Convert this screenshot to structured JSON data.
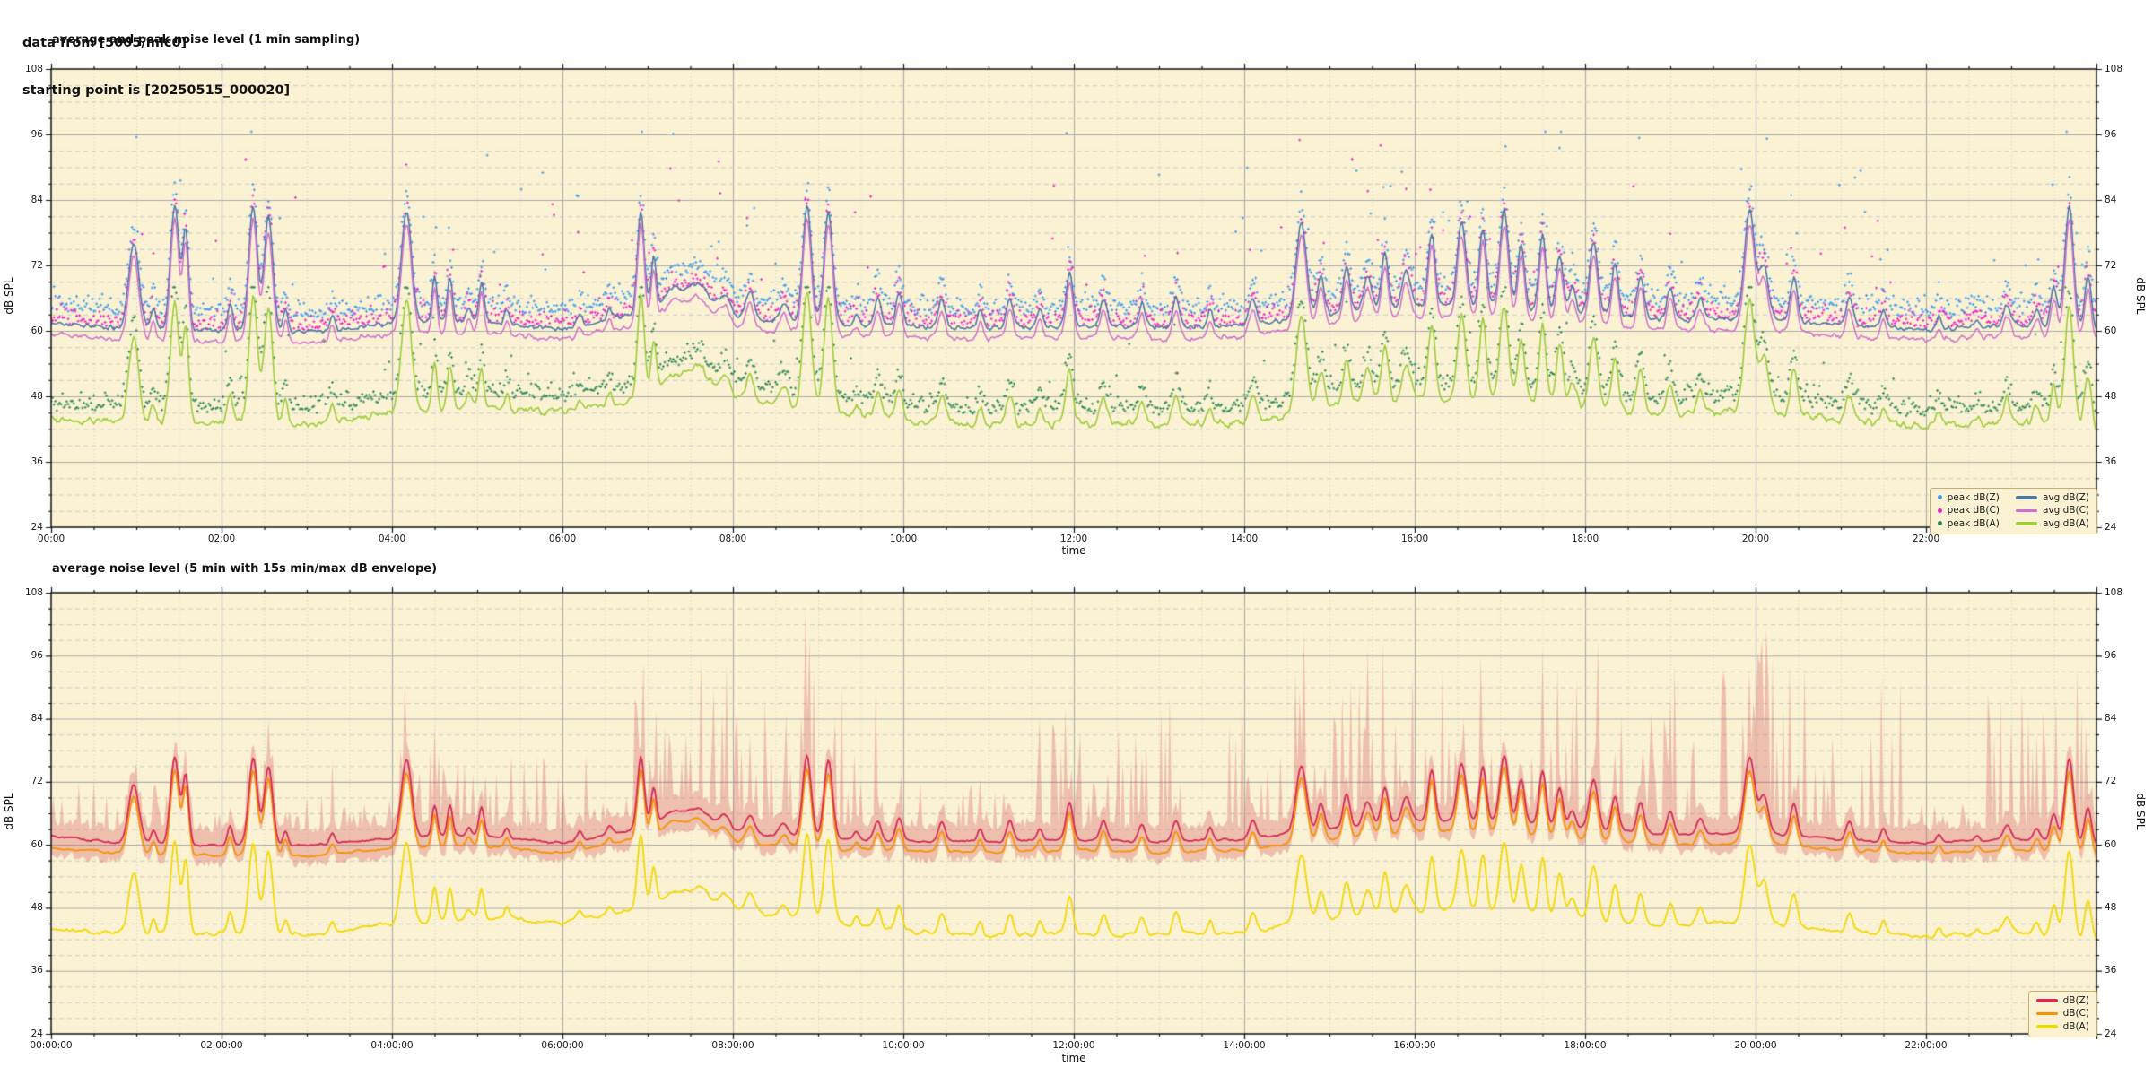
{
  "header": {
    "line1": "data from [5005/mic0]",
    "line2": "starting point is [20250515_000020]"
  },
  "colors": {
    "plot_bg": "#FBF2D3",
    "grid_major": "#ACACAC",
    "grid_minor": "#C9C9C9",
    "spine": "#111111",
    "legend_border": "#C4AE78",
    "legend_bg": "#FBF2D3"
  },
  "chart_data": [
    {
      "type": "line+scatter",
      "title": "average and peak noise level (1 min sampling)",
      "xlabel": "time",
      "ylabel": "dB SPL",
      "ylim": [
        24,
        108
      ],
      "y_major_step": 12,
      "y_minor_step": 3,
      "hours": 24,
      "x_major_step_h": 2,
      "x_minor_step_h": 0.5,
      "x_tick_labels": [
        "00:00",
        "02:00",
        "04:00",
        "06:00",
        "08:00",
        "10:00",
        "12:00",
        "14:00",
        "16:00",
        "18:00",
        "20:00",
        "22:00"
      ],
      "y_tick_labels": [
        "108",
        "96",
        "84",
        "72",
        "60",
        "48",
        "36",
        "24"
      ],
      "legend": [
        {
          "label": "peak dB(Z)",
          "kind": "dot",
          "color": "#3E9BF0"
        },
        {
          "label": "peak dB(C)",
          "kind": "dot",
          "color": "#EF25C8"
        },
        {
          "label": "peak dB(A)",
          "kind": "dot",
          "color": "#2E8B57"
        },
        {
          "label": "avg dB(Z)",
          "kind": "line",
          "color": "#4C78A8"
        },
        {
          "label": "avg dB(C)",
          "kind": "line",
          "color": "#CF6FD0"
        },
        {
          "label": "avg dB(A)",
          "kind": "line",
          "color": "#9FCC3B"
        }
      ],
      "legend_order": [
        0,
        3,
        1,
        4,
        2,
        5
      ],
      "out_windows": [
        [
          0.8,
          3.3
        ],
        [
          3.9,
          6.3
        ],
        [
          6.8,
          9.7
        ],
        [
          11.5,
          13.3
        ],
        [
          13.9,
          19.3
        ],
        [
          19.6,
          21.7
        ],
        [
          22.7,
          24.0
        ]
      ],
      "spikes": [
        [
          0.97,
          76,
          0.06
        ],
        [
          1.2,
          64,
          0.03
        ],
        [
          1.45,
          83,
          0.05
        ],
        [
          1.58,
          78,
          0.035
        ],
        [
          2.1,
          65,
          0.03
        ],
        [
          2.37,
          83,
          0.05
        ],
        [
          2.55,
          81,
          0.05
        ],
        [
          2.75,
          64,
          0.03
        ],
        [
          3.3,
          63,
          0.03
        ],
        [
          4.17,
          82,
          0.06
        ],
        [
          4.5,
          70,
          0.03
        ],
        [
          4.68,
          70,
          0.03
        ],
        [
          4.9,
          64,
          0.03
        ],
        [
          5.05,
          69,
          0.03
        ],
        [
          5.35,
          64,
          0.03
        ],
        [
          6.2,
          63,
          0.03
        ],
        [
          6.55,
          64,
          0.03
        ],
        [
          6.92,
          82,
          0.04
        ],
        [
          7.07,
          73,
          0.03
        ],
        [
          7.3,
          67.5,
          0.12
        ],
        [
          7.6,
          68.5,
          0.12
        ],
        [
          7.9,
          66.5,
          0.07
        ],
        [
          8.2,
          67,
          0.05
        ],
        [
          8.6,
          65,
          0.05
        ],
        [
          8.87,
          83,
          0.05
        ],
        [
          9.12,
          82,
          0.05
        ],
        [
          9.45,
          63,
          0.03
        ],
        [
          9.7,
          66,
          0.04
        ],
        [
          9.95,
          67,
          0.04
        ],
        [
          10.45,
          66,
          0.04
        ],
        [
          10.9,
          64,
          0.03
        ],
        [
          11.25,
          66,
          0.04
        ],
        [
          11.6,
          64,
          0.03
        ],
        [
          11.95,
          71,
          0.04
        ],
        [
          12.35,
          66,
          0.04
        ],
        [
          12.8,
          65,
          0.04
        ],
        [
          13.2,
          66,
          0.04
        ],
        [
          13.6,
          64,
          0.03
        ],
        [
          14.1,
          66,
          0.04
        ],
        [
          14.67,
          80,
          0.06
        ],
        [
          14.9,
          70,
          0.04
        ],
        [
          15.2,
          72,
          0.04
        ],
        [
          15.45,
          70,
          0.05
        ],
        [
          15.65,
          74,
          0.04
        ],
        [
          15.9,
          71,
          0.05
        ],
        [
          16.2,
          78,
          0.04
        ],
        [
          16.55,
          80,
          0.05
        ],
        [
          16.8,
          79,
          0.04
        ],
        [
          17.05,
          82,
          0.05
        ],
        [
          17.25,
          76,
          0.04
        ],
        [
          17.5,
          78,
          0.04
        ],
        [
          17.7,
          74,
          0.04
        ],
        [
          17.85,
          68,
          0.04
        ],
        [
          18.1,
          76,
          0.05
        ],
        [
          18.35,
          72,
          0.04
        ],
        [
          18.65,
          70,
          0.04
        ],
        [
          19.0,
          68,
          0.04
        ],
        [
          19.35,
          66,
          0.04
        ],
        [
          19.93,
          82,
          0.06
        ],
        [
          20.1,
          72,
          0.05
        ],
        [
          20.45,
          70,
          0.04
        ],
        [
          21.1,
          66,
          0.04
        ],
        [
          21.5,
          64,
          0.03
        ],
        [
          22.15,
          62.5,
          0.03
        ],
        [
          22.6,
          62,
          0.03
        ],
        [
          22.95,
          65,
          0.04
        ],
        [
          23.3,
          64,
          0.04
        ],
        [
          23.5,
          68,
          0.04
        ],
        [
          23.68,
          83,
          0.05
        ],
        [
          23.9,
          70,
          0.04
        ]
      ],
      "series": [
        {
          "name": "avg dB(Z)",
          "kind": "line",
          "ref": true,
          "color": "#4C78A8",
          "lw": 1.6,
          "spike_scale": 1.0,
          "noise": [
            0.8,
            0.035
          ],
          "seed": 11,
          "baseline": [
            61.5,
            60.2,
            60.0,
            59.8,
            61.3,
            61.8,
            60.3,
            63.5,
            62.5,
            61.2,
            60.8,
            60.5,
            61.0,
            60.5,
            61.0,
            63.0,
            64.5,
            64.5,
            63.0,
            62.0,
            62.3,
            61.0,
            60.3,
            61.0,
            60.0
          ]
        },
        {
          "name": "avg dB(C)",
          "kind": "line",
          "color": "#CF6FD0",
          "lw": 1.5,
          "spike_scale": 0.97,
          "noise": [
            0.9,
            0.04
          ],
          "seed": 23,
          "baseline": [
            59.5,
            58.2,
            58.0,
            57.8,
            59.3,
            59.8,
            58.3,
            61.5,
            60.5,
            59.2,
            58.8,
            58.5,
            59.0,
            58.5,
            59.0,
            61.0,
            62.5,
            62.5,
            61.0,
            60.0,
            60.3,
            59.0,
            58.3,
            59.0,
            58.0
          ]
        },
        {
          "name": "avg dB(A)",
          "kind": "line",
          "color": "#9FCC3B",
          "lw": 1.6,
          "spike_scale": 1.0,
          "noise": [
            1.3,
            0.045
          ],
          "seed": 37,
          "baseline": [
            44.0,
            42.8,
            43.2,
            42.8,
            45.0,
            46.0,
            45.2,
            48.0,
            47.5,
            45.5,
            43.5,
            42.8,
            43.0,
            42.8,
            43.2,
            46.0,
            47.5,
            47.5,
            46.0,
            44.5,
            45.5,
            43.5,
            42.5,
            43.5,
            41.5
          ]
        },
        {
          "name": "peak dB(Z)",
          "kind": "scatter",
          "color": "#3E9BF0",
          "follow": "avg dB(Z)",
          "offset": 2.5,
          "spread": 3.5,
          "out_prob": 0.07,
          "out_amp": [
            6,
            26
          ],
          "cap": 96.5,
          "seed": 51
        },
        {
          "name": "peak dB(C)",
          "kind": "scatter",
          "color": "#EF25C8",
          "follow": "avg dB(C)",
          "offset": 2.2,
          "spread": 3.5,
          "out_prob": 0.06,
          "out_amp": [
            6,
            25
          ],
          "cap": 95,
          "seed": 67
        },
        {
          "name": "peak dB(A)",
          "kind": "scatter",
          "color": "#2E8B57",
          "follow": "avg dB(A)",
          "offset": 2.2,
          "spread": 3.0,
          "out_prob": 0.05,
          "out_amp": [
            4,
            13
          ],
          "cap": 68,
          "seed": 83
        }
      ]
    },
    {
      "type": "line+envelope",
      "title": "average noise level (5 min with 15s min/max dB envelope)",
      "xlabel": "time",
      "ylabel": "dB SPL",
      "ylim": [
        24,
        108
      ],
      "y_major_step": 12,
      "y_minor_step": 3,
      "hours": 24,
      "x_major_step_h": 2,
      "x_minor_step_h": 0.5,
      "x_tick_labels": [
        "00:00:00",
        "02:00:00",
        "04:00:00",
        "06:00:00",
        "08:00:00",
        "10:00:00",
        "12:00:00",
        "14:00:00",
        "16:00:00",
        "18:00:00",
        "20:00:00",
        "22:00:00"
      ],
      "y_tick_labels": [
        "108",
        "96",
        "84",
        "72",
        "60",
        "48",
        "36",
        "24"
      ],
      "legend": [
        {
          "label": "dB(Z)",
          "kind": "line",
          "color": "#D62A54"
        },
        {
          "label": "dB(C)",
          "kind": "line",
          "color": "#F79303"
        },
        {
          "label": "dB(A)",
          "kind": "line",
          "color": "#F2D903"
        }
      ],
      "legend_order": [
        0,
        1,
        2
      ],
      "out_windows": [],
      "spikes": [
        [
          0.97,
          76,
          0.06
        ],
        [
          1.2,
          64,
          0.03
        ],
        [
          1.45,
          83,
          0.05
        ],
        [
          1.58,
          78,
          0.035
        ],
        [
          2.1,
          65,
          0.03
        ],
        [
          2.37,
          83,
          0.05
        ],
        [
          2.55,
          81,
          0.05
        ],
        [
          2.75,
          64,
          0.03
        ],
        [
          3.3,
          63,
          0.03
        ],
        [
          4.17,
          82,
          0.06
        ],
        [
          4.5,
          70,
          0.03
        ],
        [
          4.68,
          70,
          0.03
        ],
        [
          4.9,
          64,
          0.03
        ],
        [
          5.05,
          69,
          0.03
        ],
        [
          5.35,
          64,
          0.03
        ],
        [
          6.2,
          63,
          0.03
        ],
        [
          6.55,
          64,
          0.03
        ],
        [
          6.92,
          82,
          0.04
        ],
        [
          7.07,
          73,
          0.03
        ],
        [
          7.3,
          67.5,
          0.12
        ],
        [
          7.6,
          68.5,
          0.12
        ],
        [
          7.9,
          66.5,
          0.07
        ],
        [
          8.2,
          67,
          0.05
        ],
        [
          8.6,
          65,
          0.05
        ],
        [
          8.87,
          83,
          0.05
        ],
        [
          9.12,
          82,
          0.05
        ],
        [
          9.45,
          63,
          0.03
        ],
        [
          9.7,
          66,
          0.04
        ],
        [
          9.95,
          67,
          0.04
        ],
        [
          10.45,
          66,
          0.04
        ],
        [
          10.9,
          64,
          0.03
        ],
        [
          11.25,
          66,
          0.04
        ],
        [
          11.6,
          64,
          0.03
        ],
        [
          11.95,
          71,
          0.04
        ],
        [
          12.35,
          66,
          0.04
        ],
        [
          12.8,
          65,
          0.04
        ],
        [
          13.2,
          66,
          0.04
        ],
        [
          13.6,
          64,
          0.03
        ],
        [
          14.1,
          66,
          0.04
        ],
        [
          14.67,
          80,
          0.06
        ],
        [
          14.9,
          70,
          0.04
        ],
        [
          15.2,
          72,
          0.04
        ],
        [
          15.45,
          70,
          0.05
        ],
        [
          15.65,
          74,
          0.04
        ],
        [
          15.9,
          71,
          0.05
        ],
        [
          16.2,
          78,
          0.04
        ],
        [
          16.55,
          80,
          0.05
        ],
        [
          16.8,
          79,
          0.04
        ],
        [
          17.05,
          82,
          0.05
        ],
        [
          17.25,
          76,
          0.04
        ],
        [
          17.5,
          78,
          0.04
        ],
        [
          17.7,
          74,
          0.04
        ],
        [
          17.85,
          68,
          0.04
        ],
        [
          18.1,
          76,
          0.05
        ],
        [
          18.35,
          72,
          0.04
        ],
        [
          18.65,
          70,
          0.04
        ],
        [
          19.0,
          68,
          0.04
        ],
        [
          19.35,
          66,
          0.04
        ],
        [
          19.93,
          82,
          0.06
        ],
        [
          20.1,
          72,
          0.05
        ],
        [
          20.45,
          70,
          0.04
        ],
        [
          21.1,
          66,
          0.04
        ],
        [
          21.5,
          64,
          0.03
        ],
        [
          22.15,
          62.5,
          0.03
        ],
        [
          22.6,
          62,
          0.03
        ],
        [
          22.95,
          65,
          0.04
        ],
        [
          23.3,
          64,
          0.04
        ],
        [
          23.5,
          68,
          0.04
        ],
        [
          23.68,
          83,
          0.05
        ],
        [
          23.9,
          70,
          0.04
        ]
      ],
      "series": [
        {
          "name": "envelope",
          "kind": "envelope",
          "follow": "dB(Z)",
          "color": "rgba(214,88,98,0.33)",
          "pad": 2.2,
          "spike_prob": 0.32,
          "seed": 91,
          "windows": [
            [
              0.0,
              1.3,
              9
            ],
            [
              1.3,
              2.2,
              5
            ],
            [
              2.2,
              3.3,
              14
            ],
            [
              3.3,
              3.9,
              5
            ],
            [
              3.9,
              6.3,
              14
            ],
            [
              6.3,
              6.8,
              5
            ],
            [
              6.8,
              9.7,
              28
            ],
            [
              9.7,
              9.9,
              4
            ],
            [
              9.9,
              11.2,
              9
            ],
            [
              11.2,
              11.5,
              4
            ],
            [
              11.5,
              13.3,
              25
            ],
            [
              13.8,
              19.3,
              29
            ],
            [
              19.5,
              21.7,
              32
            ],
            [
              21.7,
              22.7,
              6
            ],
            [
              22.7,
              24.0,
              28
            ]
          ]
        },
        {
          "name": "dB(C)",
          "kind": "line",
          "color": "#F79303",
          "lw": 1.8,
          "spike_scale": 0.7,
          "noise": [
            0.5,
            0.09
          ],
          "seed": 57,
          "baseline": [
            59.5,
            58.2,
            58.0,
            57.8,
            59.3,
            59.8,
            58.3,
            61.5,
            60.5,
            59.2,
            58.8,
            58.5,
            59.0,
            58.5,
            59.0,
            61.0,
            62.5,
            62.5,
            61.0,
            60.0,
            60.3,
            59.0,
            58.3,
            59.0,
            58.0
          ]
        },
        {
          "name": "dB(Z)",
          "kind": "line",
          "ref": true,
          "color": "#D62A54",
          "lw": 1.8,
          "spike_scale": 0.72,
          "noise": [
            0.5,
            0.09
          ],
          "seed": 41,
          "baseline": [
            61.5,
            60.2,
            60.0,
            59.8,
            61.3,
            61.8,
            60.3,
            63.5,
            62.5,
            61.2,
            60.8,
            60.5,
            61.0,
            60.5,
            61.0,
            63.0,
            64.5,
            64.5,
            63.0,
            62.0,
            62.3,
            61.0,
            60.3,
            61.0,
            60.0
          ]
        },
        {
          "name": "dB(A)",
          "kind": "line",
          "color": "#F2D903",
          "lw": 1.8,
          "spike_scale": 0.75,
          "noise": [
            0.8,
            0.08
          ],
          "seed": 73,
          "baseline": [
            44.0,
            42.8,
            43.2,
            42.8,
            45.0,
            46.0,
            45.2,
            48.0,
            47.5,
            45.5,
            43.5,
            42.8,
            43.0,
            42.8,
            43.2,
            46.0,
            47.5,
            47.5,
            46.0,
            44.5,
            45.5,
            43.5,
            42.5,
            43.5,
            41.5
          ]
        }
      ]
    }
  ]
}
